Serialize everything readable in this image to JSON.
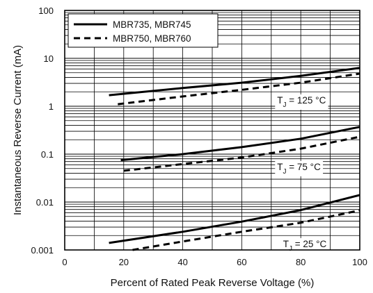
{
  "chart_data": {
    "type": "line",
    "xlabel": "Percent of Rated Peak Reverse Voltage (%)",
    "ylabel": "Instantaneous Reverse Current (mA)",
    "xlim": [
      0,
      100
    ],
    "ylim": [
      0.001,
      100
    ],
    "yscale": "log",
    "grid": true,
    "legend_placement": "top-left",
    "x_ticks": [
      "0",
      "20",
      "40",
      "60",
      "80",
      "100"
    ],
    "y_ticks": [
      "0.001",
      "0.01",
      "0.1",
      "1",
      "10",
      "100"
    ],
    "legend": [
      {
        "label": "MBR735, MBR745",
        "style": "solid"
      },
      {
        "label": "MBR750, MBR760",
        "style": "dashed"
      }
    ],
    "series": [
      {
        "group": "T_J = 125 °C",
        "style": "solid",
        "x": [
          15,
          40,
          60,
          80,
          100
        ],
        "y": [
          1.7,
          2.4,
          3.1,
          4.3,
          6.3
        ]
      },
      {
        "group": "T_J = 125 °C",
        "style": "dashed",
        "x": [
          18,
          40,
          60,
          80,
          100
        ],
        "y": [
          1.1,
          1.6,
          2.2,
          3.1,
          4.8
        ]
      },
      {
        "group": "T_J = 75 °C",
        "style": "solid",
        "x": [
          19,
          40,
          60,
          80,
          100
        ],
        "y": [
          0.075,
          0.1,
          0.14,
          0.21,
          0.37
        ]
      },
      {
        "group": "T_J = 75 °C",
        "style": "dashed",
        "x": [
          20,
          40,
          60,
          80,
          100
        ],
        "y": [
          0.045,
          0.062,
          0.085,
          0.13,
          0.23
        ]
      },
      {
        "group": "T_J = 25 °C",
        "style": "solid",
        "x": [
          15,
          40,
          60,
          80,
          100
        ],
        "y": [
          0.0014,
          0.0024,
          0.0039,
          0.0068,
          0.014
        ]
      },
      {
        "group": "T_J = 25 °C",
        "style": "dashed",
        "x": [
          23,
          40,
          60,
          80,
          100
        ],
        "y": [
          0.001,
          0.0015,
          0.0024,
          0.0037,
          0.0067
        ]
      }
    ],
    "annotations": [
      {
        "text": "T",
        "sub": "J",
        "rest": " = 125 °C",
        "x": 72,
        "y": 1.35
      },
      {
        "text": "T",
        "sub": "J",
        "rest": " = 75 °C",
        "x": 72,
        "y": 0.055
      },
      {
        "text": "T",
        "sub": "J",
        "rest": " = 25 °C",
        "x": 74,
        "y": 0.00135
      }
    ]
  }
}
